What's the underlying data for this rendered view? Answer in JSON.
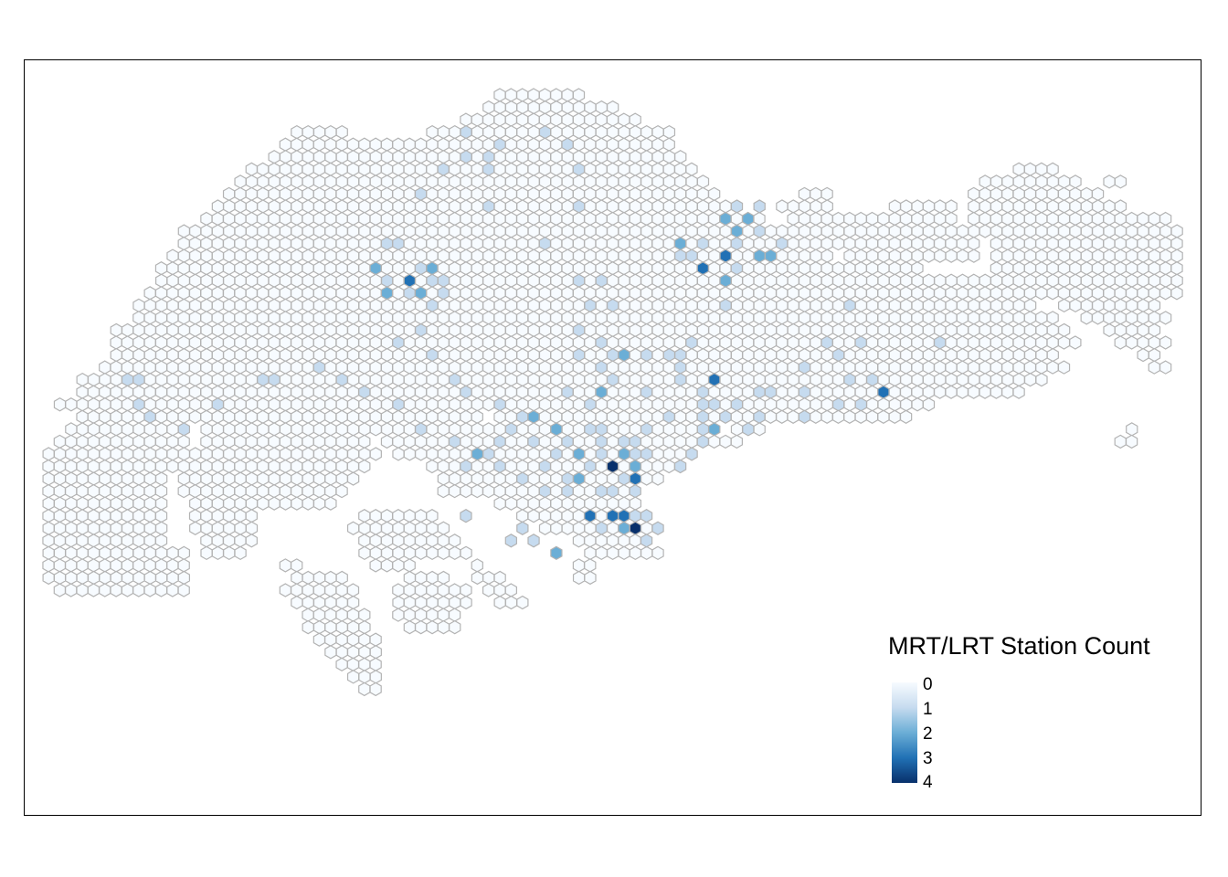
{
  "legend": {
    "title": "MRT/LRT Station Count",
    "breaks": [
      "0",
      "1",
      "2",
      "3",
      "4"
    ],
    "palette": [
      "#f7fbff",
      "#c6dbef",
      "#6baed6",
      "#2171b5",
      "#08306b"
    ],
    "direction": "low-to-high top-to-bottom"
  },
  "hex_style": {
    "stroke": "#b3b3b3",
    "default_fill": "#f7fbff"
  },
  "map": {
    "subject": "Singapore hexagonal grid",
    "count_range": [
      0,
      4
    ]
  }
}
